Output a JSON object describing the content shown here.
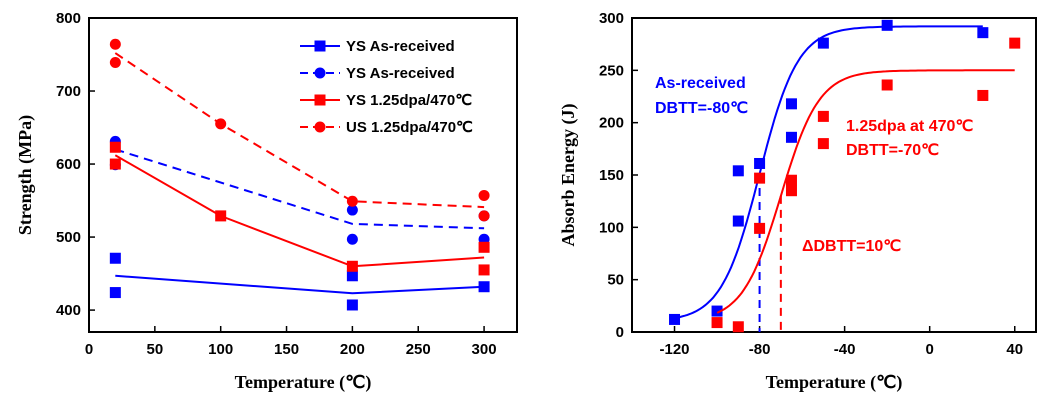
{
  "chart_data": [
    {
      "type": "line",
      "xlabel": "Temperature (℃)",
      "ylabel": "Strength (MPa)",
      "xlim": [
        0,
        325
      ],
      "ylim": [
        370,
        800
      ],
      "xticks": [
        0,
        50,
        100,
        150,
        200,
        250,
        300
      ],
      "yticks": [
        400,
        500,
        600,
        700,
        800
      ],
      "legend_position": "top-right",
      "series": [
        {
          "name": "YS As-received",
          "color": "#0000ff",
          "line_style": "solid",
          "marker": "square",
          "points": [
            [
              20,
              471
            ],
            [
              20,
              424
            ],
            [
              200,
              447
            ],
            [
              200,
              407
            ],
            [
              300,
              432
            ]
          ],
          "fit": [
            [
              20,
              447
            ],
            [
              200,
              423
            ],
            [
              300,
              432
            ]
          ]
        },
        {
          "name": "YS As-received",
          "color": "#0000ff",
          "line_style": "dashed",
          "marker": "circle",
          "points": [
            [
              20,
              631
            ],
            [
              20,
              599
            ],
            [
              200,
              537
            ],
            [
              200,
              497
            ],
            [
              300,
              529
            ],
            [
              300,
              497
            ]
          ],
          "fit": [
            [
              20,
              620
            ],
            [
              200,
              518
            ],
            [
              300,
              512
            ]
          ]
        },
        {
          "name": "YS 1.25dpa/470℃",
          "color": "#ff0000",
          "line_style": "solid",
          "marker": "square",
          "points": [
            [
              20,
              623
            ],
            [
              20,
              600
            ],
            [
              100,
              529
            ],
            [
              200,
              460
            ],
            [
              300,
              486
            ],
            [
              300,
              455
            ]
          ],
          "fit": [
            [
              20,
              612
            ],
            [
              100,
              529
            ],
            [
              200,
              460
            ],
            [
              300,
              472
            ]
          ]
        },
        {
          "name": "US 1.25dpa/470℃",
          "color": "#ff0000",
          "line_style": "dashed",
          "marker": "circle",
          "points": [
            [
              20,
              764
            ],
            [
              20,
              739
            ],
            [
              100,
              655
            ],
            [
              200,
              549
            ],
            [
              300,
              557
            ],
            [
              300,
              529
            ]
          ],
          "fit": [
            [
              20,
              752
            ],
            [
              100,
              655
            ],
            [
              200,
              549
            ],
            [
              300,
              541
            ]
          ]
        }
      ]
    },
    {
      "type": "scatter",
      "xlabel": "Temperature (℃)",
      "ylabel": "Absorb Energy (J)",
      "xlim": [
        -140,
        50
      ],
      "ylim": [
        0,
        300
      ],
      "xticks": [
        -120,
        -80,
        -40,
        0,
        40
      ],
      "yticks": [
        0,
        50,
        100,
        150,
        200,
        250,
        300
      ],
      "series": [
        {
          "color": "#0000ff",
          "marker": "square",
          "points": [
            [
              -120,
              12
            ],
            [
              -100,
              20
            ],
            [
              -90,
              106
            ],
            [
              -90,
              154
            ],
            [
              -80,
              161
            ],
            [
              -65,
              218
            ],
            [
              -65,
              186
            ],
            [
              -50,
              276
            ],
            [
              -20,
              293
            ],
            [
              25,
              286
            ]
          ],
          "fit_curve": {
            "model": "tanh",
            "lower": 10,
            "upper": 292,
            "center": -80,
            "width": 18,
            "x_range": [
              -120,
              25
            ]
          }
        },
        {
          "color": "#ff0000",
          "marker": "square",
          "points": [
            [
              -100,
              9
            ],
            [
              -90,
              5
            ],
            [
              -80,
              99
            ],
            [
              -80,
              147
            ],
            [
              -65,
              145
            ],
            [
              -65,
              135
            ],
            [
              -50,
              206
            ],
            [
              -50,
              180
            ],
            [
              -20,
              236
            ],
            [
              25,
              226
            ],
            [
              40,
              276
            ]
          ],
          "fit_curve": {
            "model": "tanh",
            "lower": 10,
            "upper": 250,
            "center": -70,
            "width": 18,
            "x_range": [
              -100,
              40
            ]
          }
        }
      ],
      "annotations": [
        {
          "lines": [
            "As-received",
            "DBTT=-80℃"
          ],
          "color": "#0000ff"
        },
        {
          "lines": [
            "1.25dpa at 470℃",
            "DBTT=-70℃"
          ],
          "color": "#ff0000"
        },
        {
          "lines": [
            "ΔDBTT=10℃"
          ],
          "color": "#ff0000"
        }
      ],
      "reference_lines": [
        {
          "x": -80,
          "y_max": 151,
          "color": "#0000ff",
          "style": "dashed"
        },
        {
          "x": -70,
          "y_max": 130,
          "color": "#ff0000",
          "style": "dashed"
        }
      ]
    }
  ]
}
